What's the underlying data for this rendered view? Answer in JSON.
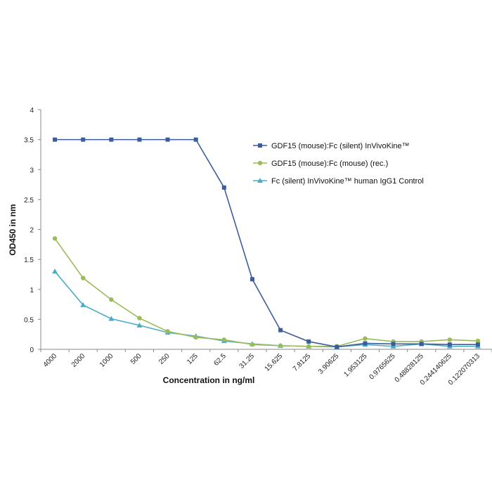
{
  "chart_data": {
    "type": "line",
    "categories": [
      "4000",
      "2000",
      "1000",
      "500",
      "250",
      "125",
      "62.5",
      "31.25",
      "15.625",
      "7.8125",
      "3.90625",
      "1.953125",
      "0.9765625",
      "0.48828125",
      "0.244140625",
      "0.122070313"
    ],
    "xlabel": "Concentration in ng/ml",
    "ylabel": "OD450 in nm",
    "ylim": [
      0,
      4
    ],
    "yticks": [
      "0",
      "0.5",
      "1",
      "1.5",
      "2",
      "2.5",
      "3",
      "3.5",
      "4"
    ],
    "grid": false,
    "legend_position": "upper-right",
    "series": [
      {
        "name": "GDF15 (mouse):Fc (silent) InVivoKine™",
        "color": "#3b5d9c",
        "marker": "square",
        "values": [
          3.5,
          3.5,
          3.5,
          3.5,
          3.5,
          3.5,
          2.7,
          1.17,
          0.32,
          0.13,
          0.04,
          0.1,
          0.09,
          0.09,
          0.08,
          0.08
        ]
      },
      {
        "name": "GDF15 (mouse):Fc (mouse) (rec.)",
        "color": "#9bbb59",
        "marker": "circle",
        "values": [
          1.85,
          1.19,
          0.83,
          0.52,
          0.3,
          0.2,
          0.16,
          0.08,
          0.06,
          0.05,
          0.05,
          0.18,
          0.13,
          0.13,
          0.16,
          0.14
        ]
      },
      {
        "name": "Fc (silent) InVivoKine™ human IgG1 Control",
        "color": "#4bacc6",
        "marker": "triangle",
        "values": [
          1.3,
          0.74,
          0.51,
          0.4,
          0.28,
          0.22,
          0.14,
          0.09,
          0.06,
          0.05,
          0.04,
          0.08,
          0.05,
          0.09,
          0.05,
          0.05
        ]
      }
    ]
  }
}
